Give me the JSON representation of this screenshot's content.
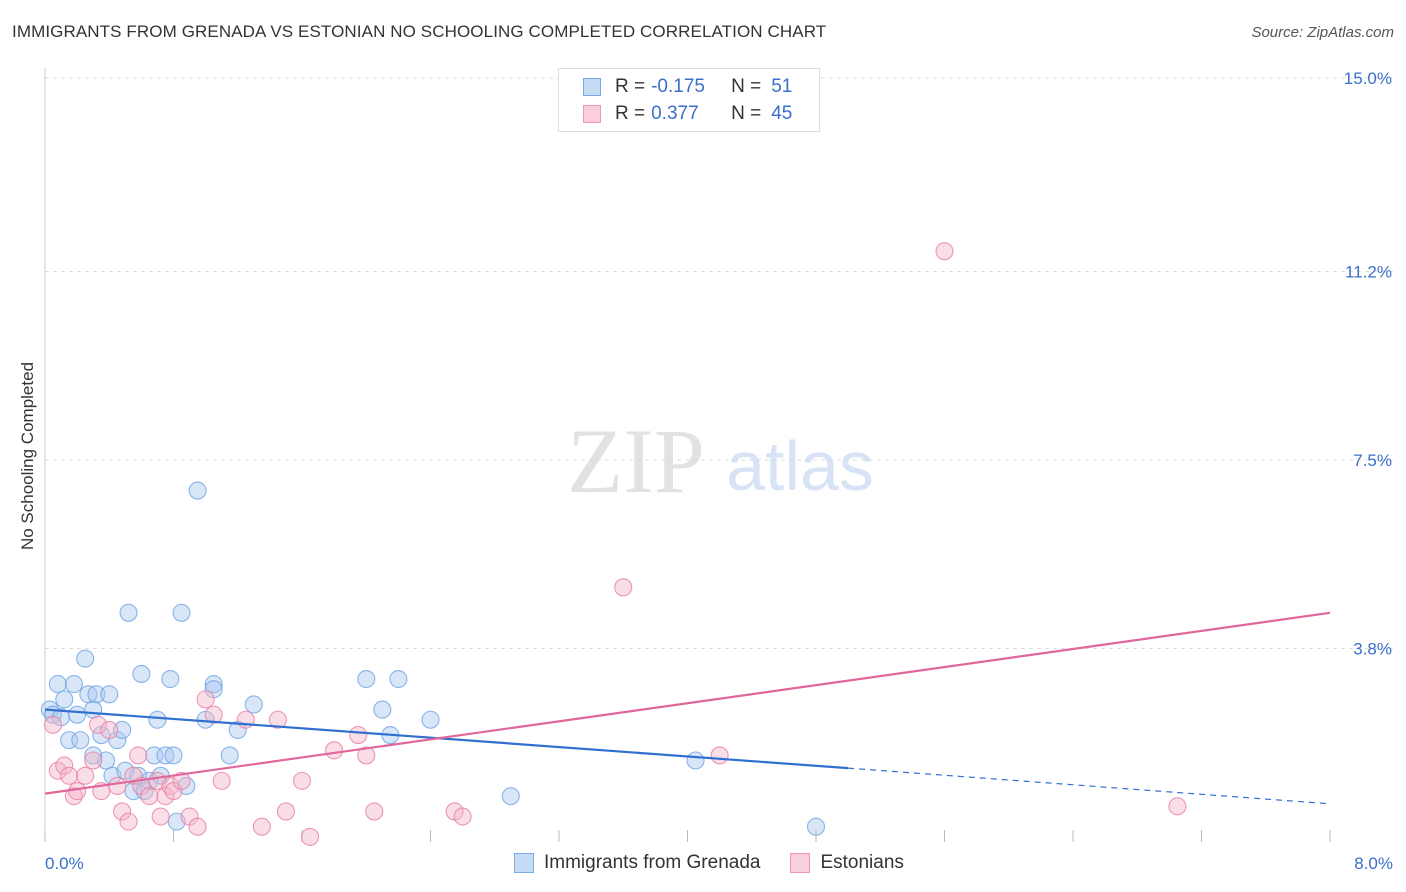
{
  "title": "IMMIGRANTS FROM GRENADA VS ESTONIAN NO SCHOOLING COMPLETED CORRELATION CHART",
  "source": "Source: ZipAtlas.com",
  "watermark": {
    "zip": "ZIP",
    "atlas": "atlas"
  },
  "legend": {
    "series1": {
      "r_label": "R =",
      "r_value": "-0.175",
      "n_label": "N =",
      "n_value": "51",
      "color": "#a9c8f0"
    },
    "series2": {
      "r_label": "R =",
      "r_value": "0.377",
      "n_label": "N =",
      "n_value": "45",
      "color": "#f5b6c9"
    }
  },
  "bottom_legend": {
    "series1": "Immigrants from Grenada",
    "series2": "Estonians"
  },
  "chart_data": {
    "type": "scatter",
    "title": "IMMIGRANTS FROM GRENADA VS ESTONIAN NO SCHOOLING COMPLETED CORRELATION CHART",
    "xlabel": "",
    "ylabel": "No Schooling Completed",
    "xlim": [
      0,
      8
    ],
    "ylim": [
      0,
      15
    ],
    "x_tick_labels": [
      "0.0%",
      "8.0%"
    ],
    "y_ticks": [
      3.8,
      7.5,
      11.2,
      15.0
    ],
    "y_tick_labels": [
      "3.8%",
      "7.5%",
      "11.2%",
      "15.0%"
    ],
    "grid": true,
    "series": [
      {
        "name": "Immigrants from Grenada",
        "color": "#6fa3e3",
        "fill": "#a9c8f0",
        "trend": {
          "x": [
            0,
            5.0
          ],
          "y": [
            2.6,
            1.45
          ],
          "dash_to_x": 8.0,
          "dash_to_y": 0.75
        },
        "points": [
          [
            0.03,
            2.6
          ],
          [
            0.05,
            2.5
          ],
          [
            0.08,
            3.1
          ],
          [
            0.12,
            2.8
          ],
          [
            0.1,
            2.45
          ],
          [
            0.15,
            2.0
          ],
          [
            0.18,
            3.1
          ],
          [
            0.2,
            2.5
          ],
          [
            0.22,
            2.0
          ],
          [
            0.25,
            3.6
          ],
          [
            0.27,
            2.9
          ],
          [
            0.3,
            2.6
          ],
          [
            0.32,
            2.9
          ],
          [
            0.35,
            2.1
          ],
          [
            0.38,
            1.6
          ],
          [
            0.4,
            2.9
          ],
          [
            0.42,
            1.3
          ],
          [
            0.45,
            2.0
          ],
          [
            0.48,
            2.2
          ],
          [
            0.5,
            1.4
          ],
          [
            0.52,
            4.5
          ],
          [
            0.55,
            1.0
          ],
          [
            0.58,
            1.3
          ],
          [
            0.6,
            3.3
          ],
          [
            0.62,
            1.0
          ],
          [
            0.65,
            1.2
          ],
          [
            0.68,
            1.7
          ],
          [
            0.7,
            2.4
          ],
          [
            0.72,
            1.3
          ],
          [
            0.75,
            1.7
          ],
          [
            0.78,
            3.2
          ],
          [
            0.8,
            1.7
          ],
          [
            0.82,
            0.4
          ],
          [
            0.85,
            4.5
          ],
          [
            0.88,
            1.1
          ],
          [
            0.95,
            6.9
          ],
          [
            1.0,
            2.4
          ],
          [
            1.05,
            3.1
          ],
          [
            1.15,
            1.7
          ],
          [
            1.2,
            2.2
          ],
          [
            1.3,
            2.7
          ],
          [
            2.0,
            3.2
          ],
          [
            2.1,
            2.6
          ],
          [
            2.15,
            2.1
          ],
          [
            2.2,
            3.2
          ],
          [
            2.4,
            2.4
          ],
          [
            2.9,
            0.9
          ],
          [
            4.05,
            1.6
          ],
          [
            4.8,
            0.3
          ],
          [
            0.3,
            1.7
          ],
          [
            1.05,
            3.0
          ]
        ]
      },
      {
        "name": "Estonians",
        "color": "#e87ea1",
        "fill": "#f5b6c9",
        "trend": {
          "x": [
            0,
            8.0
          ],
          "y": [
            0.95,
            4.5
          ]
        },
        "points": [
          [
            0.05,
            2.3
          ],
          [
            0.08,
            1.4
          ],
          [
            0.12,
            1.5
          ],
          [
            0.15,
            1.3
          ],
          [
            0.18,
            0.9
          ],
          [
            0.2,
            1.0
          ],
          [
            0.25,
            1.3
          ],
          [
            0.3,
            1.6
          ],
          [
            0.33,
            2.3
          ],
          [
            0.35,
            1.0
          ],
          [
            0.4,
            2.2
          ],
          [
            0.45,
            1.1
          ],
          [
            0.48,
            0.6
          ],
          [
            0.52,
            0.4
          ],
          [
            0.55,
            1.3
          ],
          [
            0.58,
            1.7
          ],
          [
            0.6,
            1.1
          ],
          [
            0.65,
            0.9
          ],
          [
            0.7,
            1.2
          ],
          [
            0.72,
            0.5
          ],
          [
            0.75,
            0.9
          ],
          [
            0.78,
            1.1
          ],
          [
            0.8,
            1.0
          ],
          [
            0.85,
            1.2
          ],
          [
            0.9,
            0.5
          ],
          [
            0.95,
            0.3
          ],
          [
            1.0,
            2.8
          ],
          [
            1.05,
            2.5
          ],
          [
            1.1,
            1.2
          ],
          [
            1.25,
            2.4
          ],
          [
            1.35,
            0.3
          ],
          [
            1.45,
            2.4
          ],
          [
            1.5,
            0.6
          ],
          [
            1.6,
            1.2
          ],
          [
            1.65,
            0.1
          ],
          [
            1.8,
            1.8
          ],
          [
            1.95,
            2.1
          ],
          [
            2.0,
            1.7
          ],
          [
            2.05,
            0.6
          ],
          [
            2.55,
            0.6
          ],
          [
            2.6,
            0.5
          ],
          [
            3.6,
            5.0
          ],
          [
            4.2,
            1.7
          ],
          [
            5.6,
            11.6
          ],
          [
            7.05,
            0.7
          ]
        ]
      }
    ]
  }
}
